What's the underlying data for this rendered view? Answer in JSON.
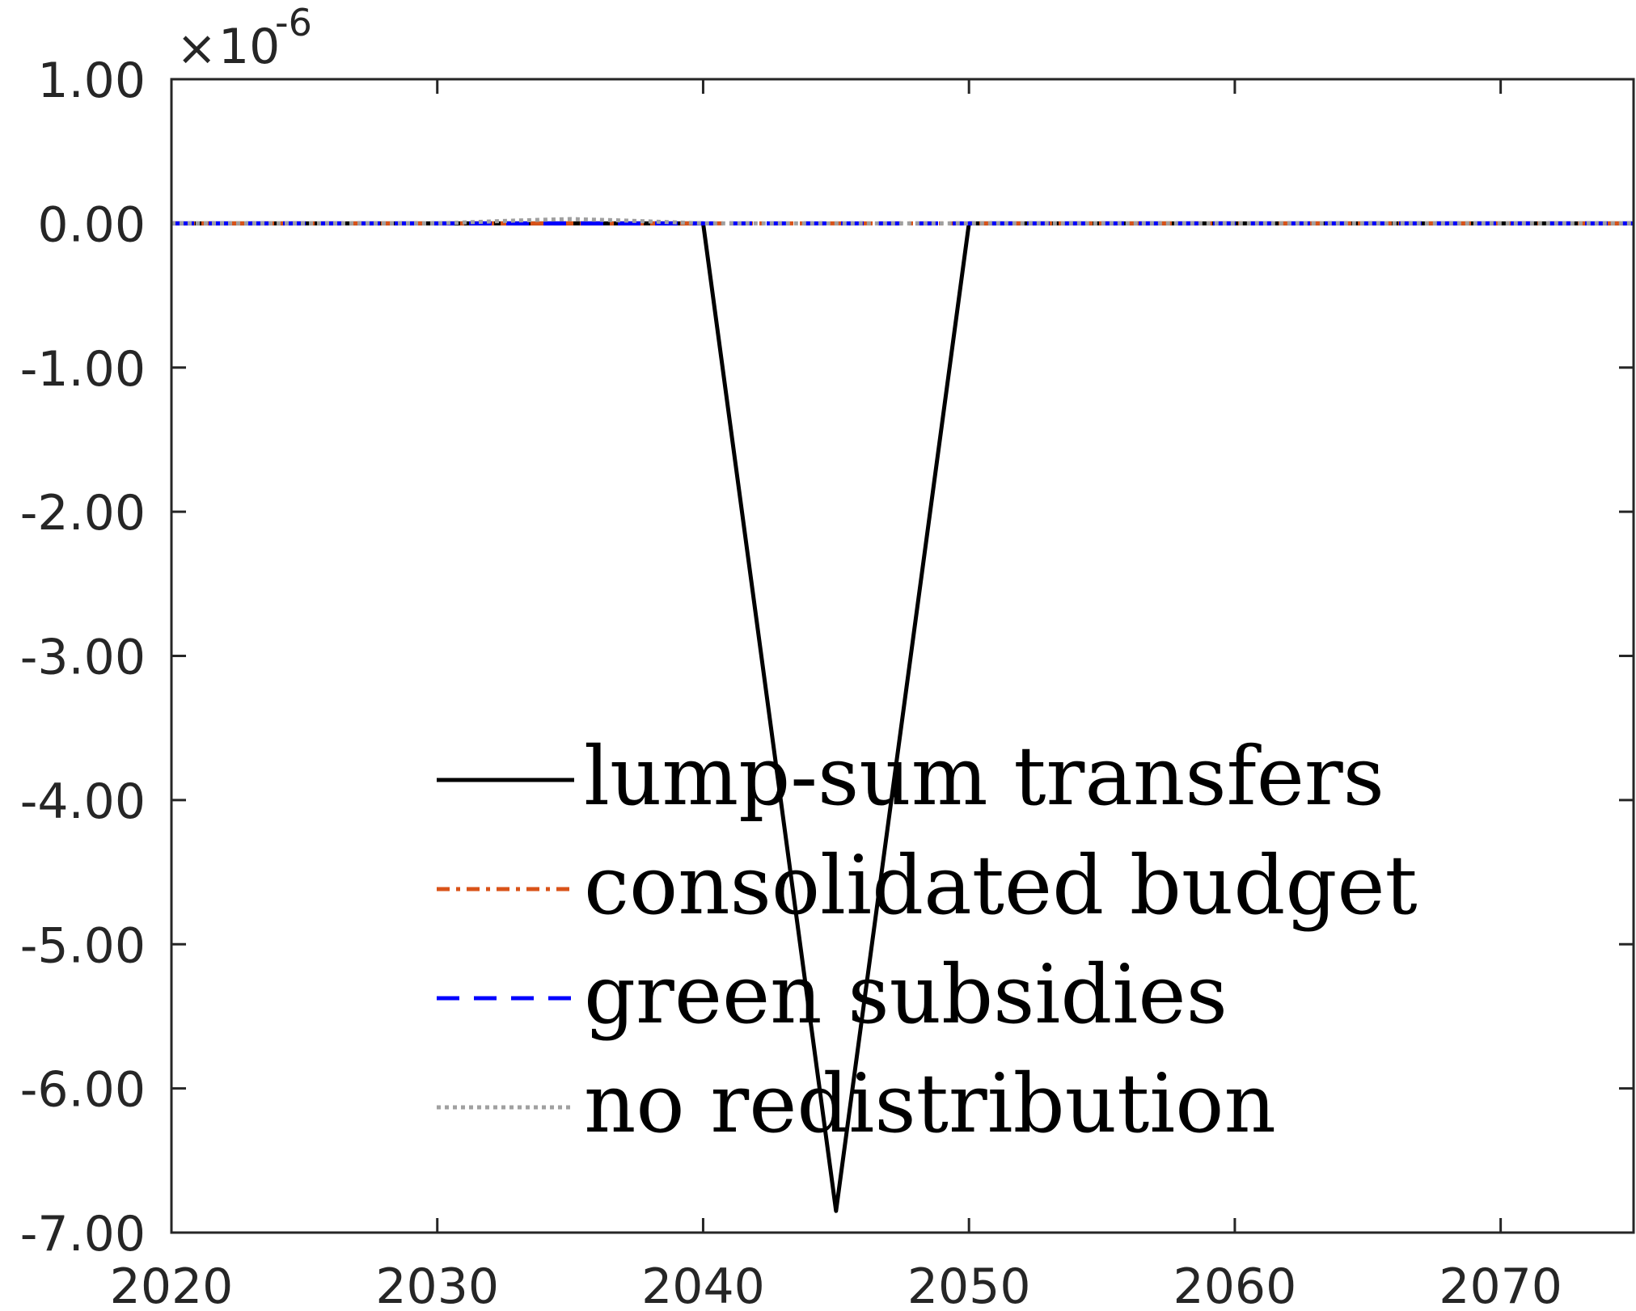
{
  "chart_data": {
    "type": "line",
    "x_label": "",
    "y_label": "",
    "y_scale_exponent": "-6",
    "xlim": [
      2020,
      2075
    ],
    "ylim": [
      -7.0,
      1.0
    ],
    "x_ticks": [
      "2020",
      "2030",
      "2040",
      "2050",
      "2060",
      "2070"
    ],
    "x_tick_values": [
      2020,
      2030,
      2040,
      2050,
      2060,
      2070
    ],
    "y_ticks": [
      "1.00",
      "0.00",
      "-1.00",
      "-2.00",
      "-3.00",
      "-4.00",
      "-5.00",
      "-6.00",
      "-7.00"
    ],
    "y_tick_values": [
      1,
      0,
      -1,
      -2,
      -3,
      -4,
      -5,
      -6,
      -7
    ],
    "grid": false,
    "legend_position": "lower-center",
    "series": [
      {
        "name": "lump-sum transfers",
        "color": "#000000",
        "style": "solid",
        "x": [
          2020,
          2025,
          2030,
          2035,
          2040,
          2045,
          2050,
          2055,
          2060,
          2065,
          2070,
          2075
        ],
        "y": [
          0.0,
          0.0,
          0.0,
          0.0,
          0.0,
          -6.85,
          0.0,
          0.0,
          0.0,
          0.0,
          0.0,
          0.0
        ]
      },
      {
        "name": "consolidated budget",
        "color": "#D95319",
        "style": "dashdot",
        "x": [
          2020,
          2025,
          2030,
          2035,
          2040,
          2045,
          2050,
          2055,
          2060,
          2065,
          2070,
          2075
        ],
        "y": [
          0.0,
          0.0,
          0.0,
          0.0,
          0.0,
          0.0,
          0.0,
          0.0,
          0.0,
          0.0,
          0.0,
          0.0
        ]
      },
      {
        "name": "green subsidies",
        "color": "#0000FF",
        "style": "dashed",
        "x": [
          2020,
          2025,
          2030,
          2035,
          2040,
          2045,
          2050,
          2055,
          2060,
          2065,
          2070,
          2075
        ],
        "y": [
          0.0,
          0.0,
          0.0,
          0.0,
          0.0,
          0.0,
          0.0,
          0.0,
          0.0,
          0.0,
          0.0,
          0.0
        ]
      },
      {
        "name": "no redistribution",
        "color": "#A0A0A0",
        "style": "dotted",
        "x": [
          2020,
          2025,
          2030,
          2033,
          2035,
          2037,
          2040,
          2045,
          2050,
          2055,
          2060,
          2065,
          2070,
          2075
        ],
        "y": [
          0.0,
          0.0,
          0.0,
          0.02,
          0.03,
          0.02,
          0.0,
          0.0,
          0.0,
          0.0,
          0.0,
          0.0,
          0.0,
          0.0
        ]
      }
    ]
  }
}
